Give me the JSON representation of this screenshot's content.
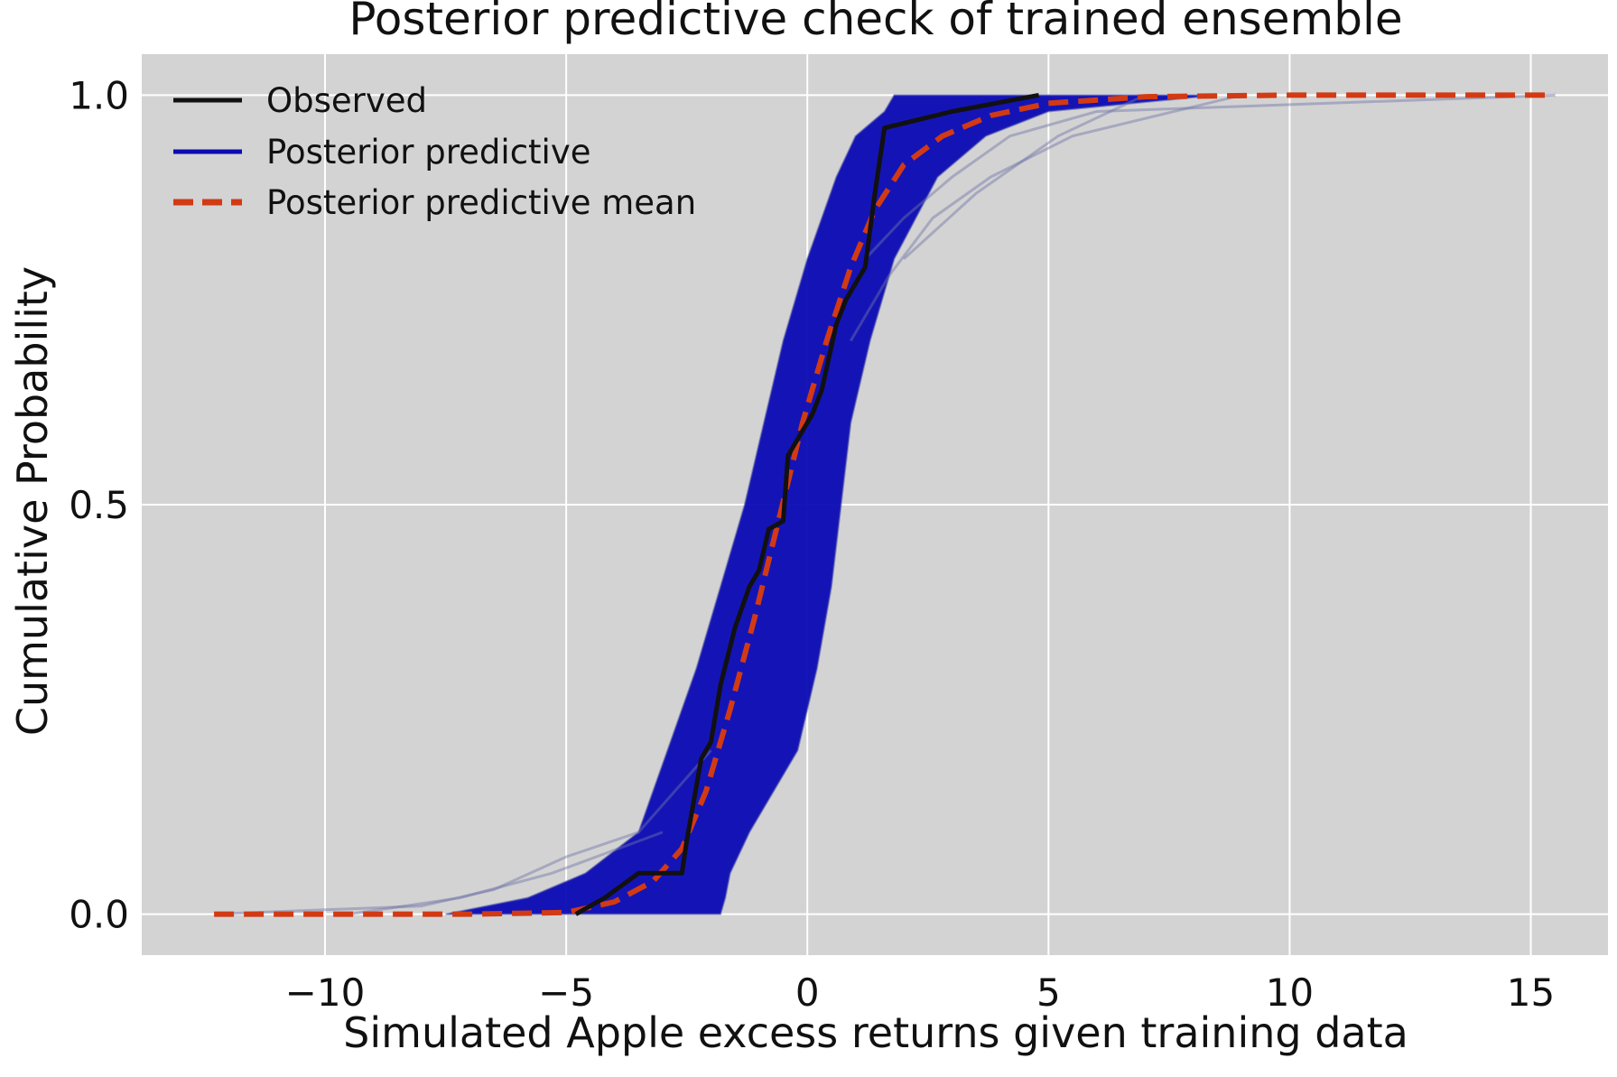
{
  "chart_data": {
    "type": "line",
    "title": "Posterior predictive check of trained ensemble",
    "xlabel": "Simulated Apple excess returns given training data",
    "ylabel": "Cumulative Probability",
    "xlim": [
      -13.8,
      16.6
    ],
    "ylim": [
      -0.05,
      1.05
    ],
    "x_ticks": [
      -10,
      -5,
      0,
      5,
      10,
      15
    ],
    "x_tick_labels": [
      "−10",
      "−5",
      "0",
      "5",
      "10",
      "15"
    ],
    "y_ticks": [
      0.0,
      0.5,
      1.0
    ],
    "y_tick_labels": [
      "0.0",
      "0.5",
      "1.0"
    ],
    "grid": true,
    "background": "#d3d3d3",
    "legend_position": "top-left",
    "legend": [
      {
        "label": "Observed",
        "color": "#111111",
        "style": "solid"
      },
      {
        "label": "Posterior predictive",
        "color": "#0a0ab4",
        "style": "solid"
      },
      {
        "label": "Posterior predictive mean",
        "color": "#d23a14",
        "style": "dashed"
      }
    ],
    "series": [
      {
        "name": "Observed",
        "color": "#111111",
        "x": [
          -4.8,
          -4.2,
          -3.5,
          -2.6,
          -2.5,
          -2.2,
          -2.0,
          -1.8,
          -1.5,
          -1.2,
          -1.0,
          -0.8,
          -0.5,
          -0.4,
          -0.2,
          0.1,
          0.3,
          0.6,
          0.8,
          1.2,
          1.4,
          1.6,
          3.0,
          4.8
        ],
        "y": [
          0.0,
          0.02,
          0.05,
          0.05,
          0.09,
          0.19,
          0.21,
          0.28,
          0.35,
          0.4,
          0.42,
          0.47,
          0.48,
          0.56,
          0.58,
          0.61,
          0.64,
          0.72,
          0.75,
          0.79,
          0.88,
          0.96,
          0.98,
          1.0
        ]
      },
      {
        "name": "Posterior predictive mean",
        "color": "#d23a14",
        "x": [
          -12.3,
          -7.0,
          -5.0,
          -4.0,
          -3.2,
          -2.6,
          -2.1,
          -1.6,
          -1.1,
          -0.6,
          -0.1,
          0.4,
          0.9,
          1.4,
          2.0,
          2.8,
          3.8,
          5.0,
          7.0,
          10.0,
          15.5
        ],
        "y": [
          0.0,
          0.0,
          0.002,
          0.015,
          0.04,
          0.08,
          0.15,
          0.25,
          0.36,
          0.48,
          0.6,
          0.7,
          0.79,
          0.86,
          0.915,
          0.95,
          0.975,
          0.99,
          0.998,
          1.0,
          1.0
        ]
      }
    ],
    "ensemble_band": {
      "name": "Posterior predictive",
      "color": "#0a0ab4",
      "y": [
        0.0,
        0.02,
        0.05,
        0.1,
        0.2,
        0.3,
        0.4,
        0.5,
        0.6,
        0.7,
        0.8,
        0.9,
        0.95,
        0.98,
        1.0
      ],
      "x_low": [
        -7.5,
        -5.8,
        -4.6,
        -3.5,
        -2.9,
        -2.3,
        -1.8,
        -1.3,
        -0.9,
        -0.5,
        0.0,
        0.6,
        1.0,
        1.6,
        1.8
      ],
      "x_high": [
        -1.8,
        -1.7,
        -1.6,
        -1.2,
        -0.2,
        0.2,
        0.5,
        0.7,
        0.9,
        1.3,
        1.8,
        2.7,
        3.7,
        5.0,
        8.5
      ]
    },
    "ensemble_outliers": {
      "color": "#6e73a6",
      "series": [
        {
          "x": [
            -12.3,
            -8.0,
            -6.5,
            -5.0,
            -3.5,
            -2.0
          ],
          "y": [
            0.0,
            0.01,
            0.03,
            0.07,
            0.1,
            0.2
          ]
        },
        {
          "x": [
            -9.5,
            -7.2,
            -5.3,
            -3.0
          ],
          "y": [
            0.0,
            0.02,
            0.05,
            0.1
          ]
        },
        {
          "x": [
            1.2,
            2.0,
            3.0,
            4.2,
            6.0,
            15.5
          ],
          "y": [
            0.8,
            0.85,
            0.9,
            0.95,
            0.98,
            1.0
          ]
        },
        {
          "x": [
            0.9,
            1.7,
            2.6,
            3.8,
            5.5,
            9.0
          ],
          "y": [
            0.7,
            0.78,
            0.85,
            0.9,
            0.95,
            1.0
          ]
        },
        {
          "x": [
            2.0,
            3.5,
            5.2,
            7.0
          ],
          "y": [
            0.8,
            0.88,
            0.95,
            1.0
          ]
        }
      ]
    }
  }
}
